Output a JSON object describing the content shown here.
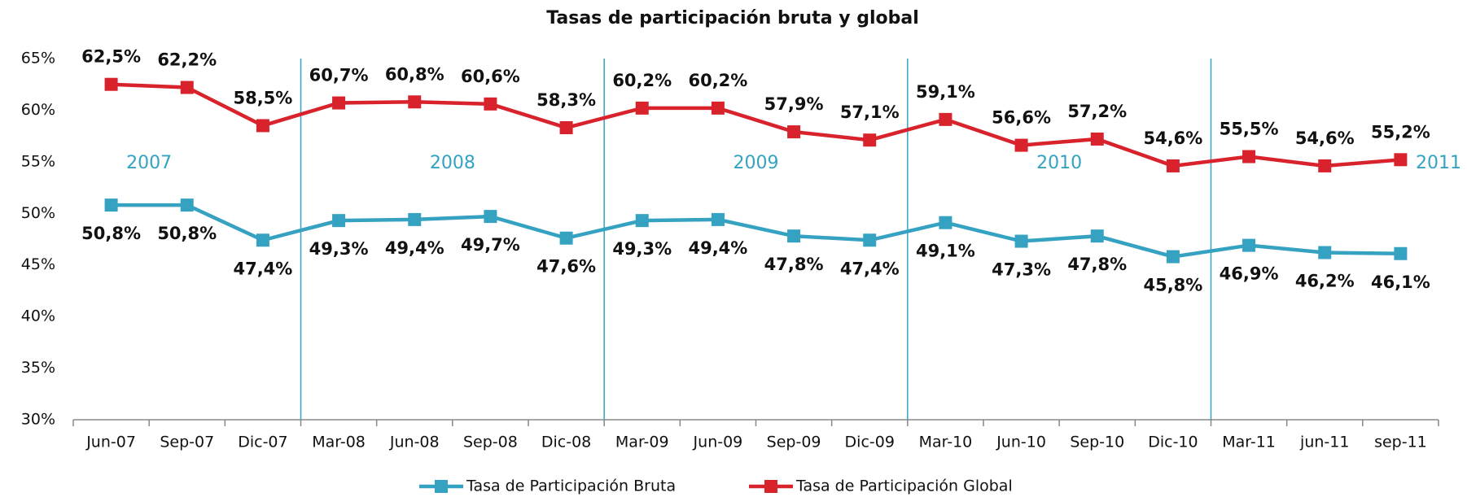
{
  "chart_data": {
    "type": "line",
    "title": "Tasas de participación bruta y global",
    "categories": [
      "Jun-07",
      "Sep-07",
      "Dic-07",
      "Mar-08",
      "Jun-08",
      "Sep-08",
      "Dic-08",
      "Mar-09",
      "Jun-09",
      "Sep-09",
      "Dic-09",
      "Mar-10",
      "Jun-10",
      "Sep-10",
      "Dic-10",
      "Mar-11",
      "jun-11",
      "sep-11"
    ],
    "series": [
      {
        "name": "Tasa de Participación Bruta",
        "color": "#35a2c2",
        "values": [
          50.8,
          50.8,
          47.4,
          49.3,
          49.4,
          49.7,
          47.6,
          49.3,
          49.4,
          47.8,
          47.4,
          49.1,
          47.3,
          47.8,
          45.8,
          46.9,
          46.2,
          46.1
        ],
        "value_labels": [
          "50,8%",
          "50,8%",
          "47,4%",
          "49,3%",
          "49,4%",
          "49,7%",
          "47,6%",
          "49,3%",
          "49,4%",
          "47,8%",
          "47,4%",
          "49,1%",
          "47,3%",
          "47,8%",
          "45,8%",
          "46,9%",
          "46,2%",
          "46,1%"
        ]
      },
      {
        "name": "Tasa de Participación Global",
        "color": "#d8232c",
        "values": [
          62.5,
          62.2,
          58.5,
          60.7,
          60.8,
          60.6,
          58.3,
          60.2,
          60.2,
          57.9,
          57.1,
          59.1,
          56.6,
          57.2,
          54.6,
          55.5,
          54.6,
          55.2
        ],
        "value_labels": [
          "62,5%",
          "62,2%",
          "58,5%",
          "60,7%",
          "60,8%",
          "60,6%",
          "58,3%",
          "60,2%",
          "60,2%",
          "57,9%",
          "57,1%",
          "59,1%",
          "56,6%",
          "57,2%",
          "54,6%",
          "55,5%",
          "54,6%",
          "55,2%"
        ]
      }
    ],
    "annotations": [
      "2007",
      "2008",
      "2009",
      "2010",
      "2011"
    ],
    "ylim": [
      30,
      65
    ],
    "yticks": [
      {
        "value": 30,
        "label": "30%"
      },
      {
        "value": 35,
        "label": "35%"
      },
      {
        "value": 40,
        "label": "40%"
      },
      {
        "value": 45,
        "label": "45%"
      },
      {
        "value": 50,
        "label": "50%"
      },
      {
        "value": 55,
        "label": "55%"
      },
      {
        "value": 60,
        "label": "60%"
      },
      {
        "value": 65,
        "label": "65%"
      }
    ],
    "legend": "bottom"
  }
}
